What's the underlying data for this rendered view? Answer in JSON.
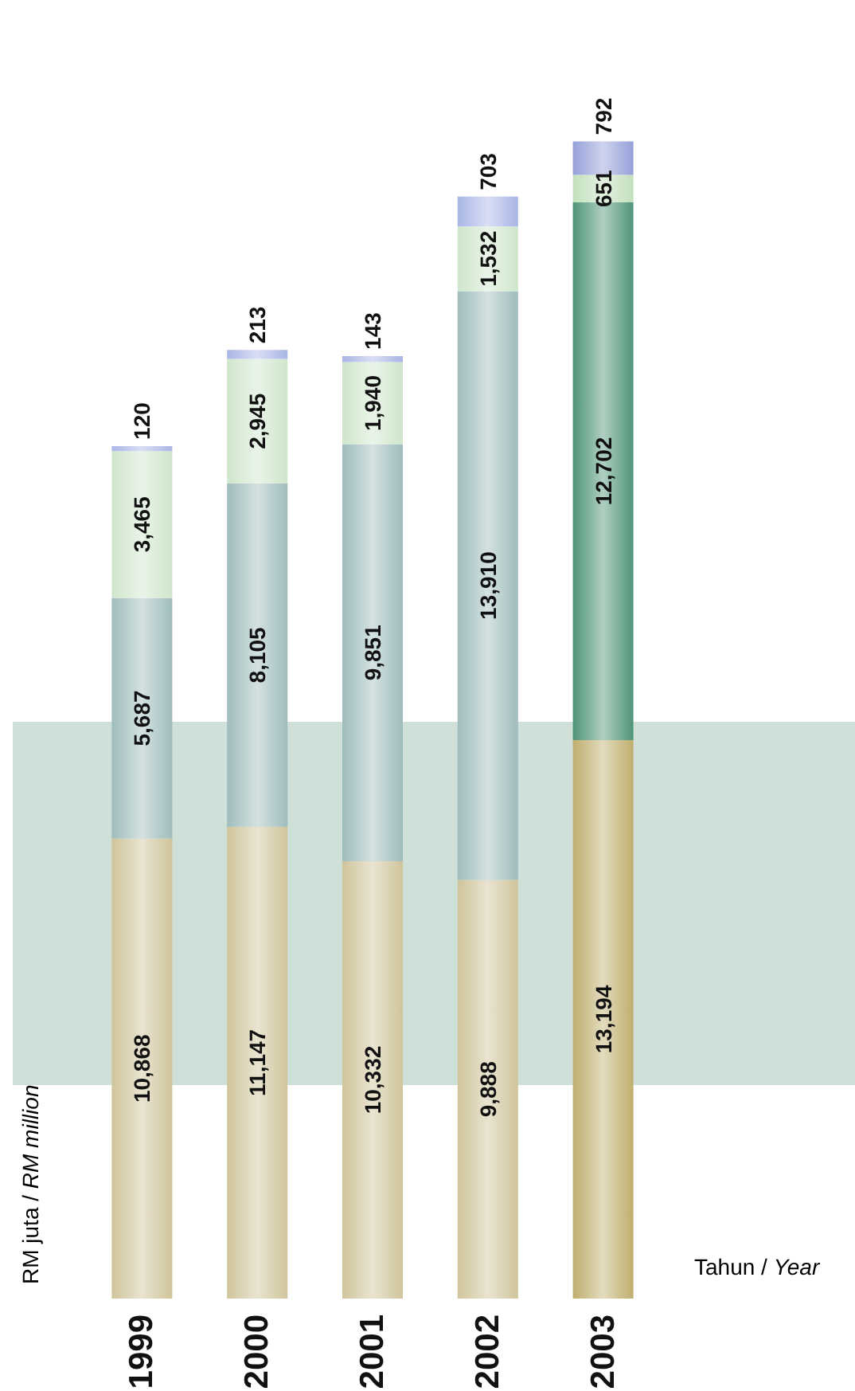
{
  "chart_data": {
    "type": "bar",
    "stacked": true,
    "xlabel": "Tahun / Year",
    "ylabel": "RM juta / RM million",
    "categories": [
      "1999",
      "2000",
      "2001",
      "2002",
      "2003"
    ],
    "tick_labels": "x",
    "series": [
      {
        "colors": [
          "#cfc49a",
          "#cfc49a",
          "#cfc49a",
          "#cfc49a",
          "#bfae6e"
        ],
        "values": [
          10868,
          11147,
          10332,
          9888,
          13194
        ],
        "value_labels": [
          "10,868",
          "11,147",
          "10,332",
          "9,888",
          "13,194"
        ]
      },
      {
        "colors": [
          "#9fbcbc",
          "#9fbcbc",
          "#9fbcbc",
          "#9fbcbc",
          "#4f9478"
        ],
        "values": [
          5687,
          8105,
          9851,
          13910,
          12702
        ],
        "value_labels": [
          "5,687",
          "8,105",
          "9,851",
          "13,910",
          "12,702"
        ]
      },
      {
        "colors": [
          "#cfe6cb",
          "#cfe6cb",
          "#cfe6cb",
          "#cfe6cb",
          "#c2e0bc"
        ],
        "values": [
          3465,
          2945,
          1940,
          1532,
          651
        ],
        "value_labels": [
          "3,465",
          "2,945",
          "1,940",
          "1,532",
          "651"
        ]
      },
      {
        "colors": [
          "#a9b6e6",
          "#a9b6e6",
          "#a9b6e6",
          "#a9b6e6",
          "#95a0d8"
        ],
        "values": [
          120,
          213,
          143,
          703,
          792
        ],
        "value_labels": [
          "120",
          "213",
          "143",
          "703",
          "792"
        ]
      }
    ]
  }
}
